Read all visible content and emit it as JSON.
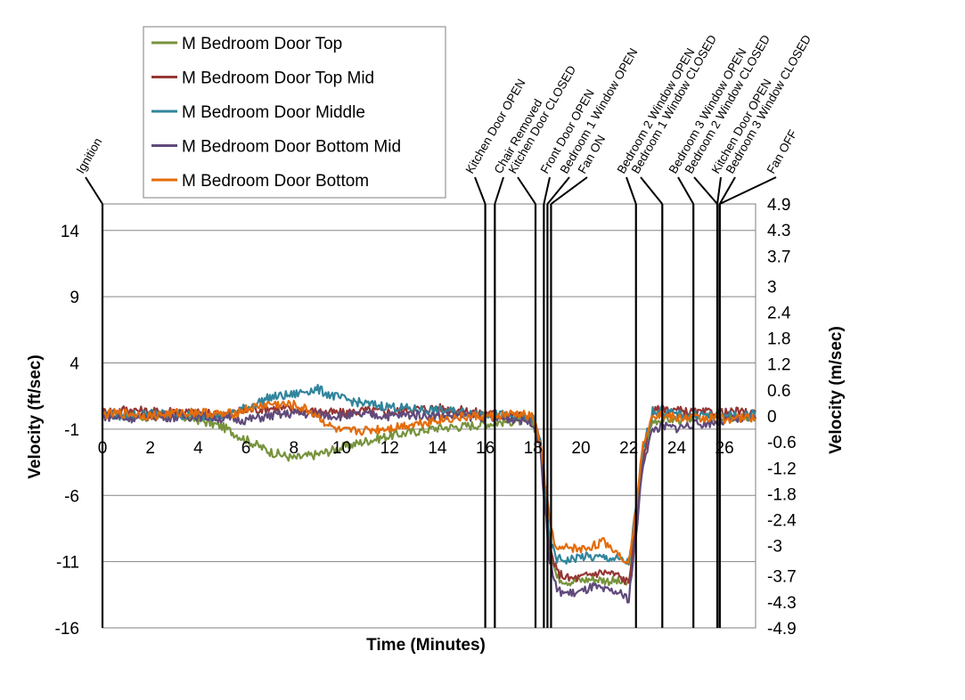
{
  "chart_data": {
    "type": "line",
    "xlabel": "Time (Minutes)",
    "ylabel": "Velocity (ft/sec)",
    "y2label": "Velocity (m/sec)",
    "xlim": [
      0,
      27.3
    ],
    "ylim": [
      -16,
      16
    ],
    "y2lim": [
      -4.9,
      4.9
    ],
    "x_ticks": [
      0,
      2,
      4,
      6,
      8,
      10,
      12,
      14,
      16,
      18,
      20,
      22,
      24,
      26
    ],
    "y_ticks": [
      14,
      9,
      4,
      -1,
      -6,
      -11,
      -16
    ],
    "y2_ticks": [
      4.9,
      4.3,
      3.7,
      3,
      2.4,
      1.8,
      1.2,
      0.6,
      0,
      -0.6,
      -1.2,
      -1.8,
      -2.4,
      -3,
      -3.7,
      -4.3,
      -4.9
    ],
    "grid": "horizontal",
    "legend_position": "top-left",
    "series": [
      {
        "name": "M Bedroom Door Top",
        "color": "#77933c",
        "x": [
          0,
          1,
          2,
          3,
          4,
          5,
          6,
          7,
          8,
          9,
          10,
          11,
          12,
          13,
          14,
          15,
          16,
          16.5,
          17,
          17.5,
          18,
          18.3,
          18.5,
          18.7,
          19,
          19.5,
          20,
          20.5,
          21,
          21.5,
          22,
          22.3,
          22.6,
          23,
          23.5,
          24,
          24.5,
          25,
          25.5,
          26,
          26.5,
          27,
          27.3
        ],
        "y": [
          0,
          0.1,
          -0.1,
          0,
          -0.3,
          -0.8,
          -1.8,
          -2.7,
          -3.2,
          -2.9,
          -2.4,
          -1.9,
          -1.5,
          -1.2,
          -0.9,
          -0.8,
          -0.6,
          -0.5,
          -0.4,
          -0.4,
          -0.6,
          -2,
          -6,
          -10,
          -12.2,
          -12.5,
          -12.4,
          -12.3,
          -12.4,
          -12.5,
          -12.7,
          -8,
          -3,
          -0.4,
          -0.2,
          -0.3,
          -0.2,
          -0.1,
          -0.2,
          -0.2,
          -0.1,
          -0.2,
          -0.1
        ]
      },
      {
        "name": "M Bedroom Door Top Mid",
        "color": "#953735",
        "x": [
          0,
          1,
          2,
          3,
          4,
          5,
          6,
          7,
          8,
          9,
          10,
          11,
          12,
          13,
          14,
          15,
          16,
          16.5,
          17,
          17.5,
          18,
          18.3,
          18.5,
          18.7,
          19,
          19.5,
          20,
          20.5,
          21,
          21.5,
          22,
          22.3,
          22.6,
          23,
          23.5,
          24,
          24.5,
          25,
          25.5,
          26,
          26.5,
          27,
          27.3
        ],
        "y": [
          0.3,
          0.5,
          0.3,
          0.4,
          0.2,
          0.1,
          0.4,
          0.6,
          0.5,
          0.3,
          0.2,
          0.4,
          0.3,
          0.5,
          0.6,
          0.4,
          0.2,
          0.1,
          0,
          0,
          -0.2,
          -2,
          -6,
          -10,
          -11.8,
          -12.3,
          -12.2,
          -11.9,
          -11.8,
          -12,
          -12.6,
          -8,
          -3,
          0.3,
          0.6,
          0.4,
          0.3,
          0.2,
          0.3,
          0.2,
          0.3,
          0.2,
          0.3
        ]
      },
      {
        "name": "M Bedroom Door Middle",
        "color": "#31859c",
        "x": [
          0,
          1,
          2,
          3,
          4,
          5,
          6,
          7,
          8,
          8.5,
          9,
          9.5,
          10,
          11,
          12,
          13,
          14,
          15,
          16,
          16.5,
          17,
          17.5,
          18,
          18.3,
          18.5,
          18.7,
          19,
          19.5,
          20,
          20.5,
          21,
          21.5,
          22,
          22.3,
          22.6,
          23,
          23.5,
          24,
          24.5,
          25,
          25.5,
          26,
          26.5,
          27,
          27.3
        ],
        "y": [
          0.1,
          0,
          0.2,
          0.1,
          0,
          0,
          0.6,
          1.4,
          1.6,
          1.9,
          2.0,
          1.6,
          1.3,
          0.9,
          0.7,
          0.5,
          0.4,
          0.3,
          0.2,
          0.1,
          0,
          -0.1,
          -0.2,
          -2,
          -6,
          -9.5,
          -10.8,
          -10.9,
          -10.6,
          -10.7,
          -10.7,
          -10.8,
          -11.1,
          -7,
          -2.5,
          0.4,
          0.3,
          0.1,
          0,
          0.1,
          0,
          0.1,
          0,
          0,
          0.4
        ]
      },
      {
        "name": "M Bedroom Door Bottom Mid",
        "color": "#604a7b",
        "x": [
          0,
          1,
          2,
          3,
          4,
          5,
          6,
          7,
          8,
          9,
          10,
          11,
          12,
          13,
          14,
          15,
          16,
          16.5,
          17,
          17.5,
          18,
          18.3,
          18.5,
          18.7,
          19,
          19.5,
          20,
          20.5,
          21,
          21.5,
          22,
          22.3,
          22.6,
          23,
          23.5,
          24,
          24.5,
          25,
          25.5,
          26,
          26.5,
          27,
          27.3
        ],
        "y": [
          0,
          -0.2,
          0,
          -0.1,
          0,
          -0.2,
          -0.3,
          0,
          0.2,
          0.1,
          0,
          0.1,
          0,
          0.1,
          0,
          0,
          -0.1,
          -0.2,
          -0.2,
          -0.3,
          -0.5,
          -2.5,
          -7,
          -11,
          -13.2,
          -13.4,
          -13.3,
          -12.9,
          -13.2,
          -13.3,
          -13.8,
          -9,
          -3.5,
          -1,
          -0.8,
          -0.9,
          -0.7,
          -0.6,
          -0.5,
          -0.4,
          -0.3,
          -0.2,
          -0.2
        ]
      },
      {
        "name": "M Bedroom Door Bottom",
        "color": "#e46c0a",
        "x": [
          0,
          1,
          2,
          3,
          4,
          5,
          5.5,
          6,
          7,
          8,
          8.5,
          9,
          9.5,
          10,
          11,
          12,
          13,
          14,
          15,
          16,
          16.5,
          17,
          17.5,
          18,
          18.3,
          18.5,
          18.7,
          19,
          19.5,
          20,
          20.5,
          21,
          21.5,
          22,
          22.3,
          22.6,
          23,
          23.5,
          24,
          24.5,
          25,
          25.5,
          26,
          26.5,
          27,
          27.3
        ],
        "y": [
          0.1,
          0.2,
          0,
          0.2,
          0.3,
          0.1,
          0.2,
          0.5,
          0.9,
          0.8,
          0.5,
          0,
          -0.8,
          -1.2,
          -1.1,
          -0.9,
          -0.6,
          -0.3,
          -0.1,
          0,
          0,
          0.1,
          0.1,
          -0.1,
          -2,
          -5,
          -8,
          -10.2,
          -9.9,
          -10.1,
          -9.8,
          -9.5,
          -10.3,
          -11,
          -7,
          -2,
          0.2,
          0,
          -0.2,
          -0.1,
          -0.2,
          -0.1,
          -0.2,
          -0.2,
          -0.1,
          -0.2
        ]
      }
    ],
    "events": [
      {
        "x": 0,
        "label": "Ignition"
      },
      {
        "x": 16,
        "label": "Kitchen Door OPEN"
      },
      {
        "x": 16.4,
        "label": "Chair Removed"
      },
      {
        "x": 18.1,
        "label": "Kitchen Door CLOSED"
      },
      {
        "x": 18.45,
        "label": "Front Door OPEN"
      },
      {
        "x": 18.6,
        "label": "Bedroom 1 Window OPEN"
      },
      {
        "x": 18.75,
        "label": "Fan ON"
      },
      {
        "x": 22.3,
        "label": "Bedroom 2 Window OPEN"
      },
      {
        "x": 23.4,
        "label": "Bedroom 1 Window CLOSED"
      },
      {
        "x": 24.7,
        "label": "Bedroom 3 Window OPEN"
      },
      {
        "x": 25.7,
        "label": "Bedroom 2 Window CLOSED"
      },
      {
        "x": 25.7,
        "label": "Kitchen Door OPEN"
      },
      {
        "x": 25.8,
        "label": "Bedroom 3 Window CLOSED"
      },
      {
        "x": 25.8,
        "label": "Fan OFF"
      }
    ]
  }
}
